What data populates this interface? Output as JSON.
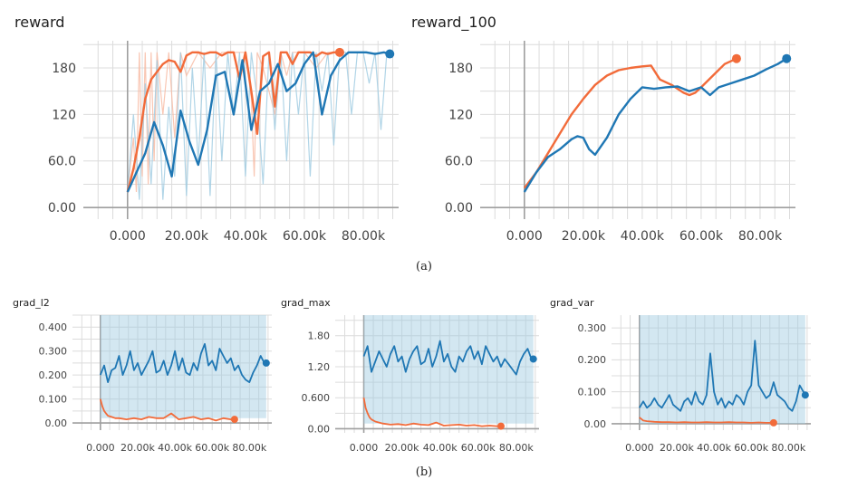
{
  "captions": {
    "top": "(a)",
    "bottom": "(b)"
  },
  "colors": {
    "blue": "#1f77b4",
    "orange": "#f26b3a",
    "blue_faint": "#9ecae1",
    "orange_faint": "#f8b9a1",
    "grid": "#dcdcdc",
    "axis": "#9e9e9e"
  },
  "chart_data": [
    {
      "type": "line",
      "title": "reward",
      "xlabel": "",
      "ylabel": "",
      "x_ticks": [
        0,
        20000,
        40000,
        60000,
        80000
      ],
      "x_tick_labels": [
        "0.000",
        "20.00k",
        "40.00k",
        "60.00k",
        "80.00k"
      ],
      "y_ticks": [
        0,
        60,
        120,
        180
      ],
      "y_tick_labels": [
        "0.00",
        "60.0",
        "120",
        "180"
      ],
      "xlim": [
        -15000,
        92000
      ],
      "ylim": [
        -15,
        215
      ],
      "grid": true,
      "series": [
        {
          "color": "orange",
          "x": [
            0,
            2000,
            4000,
            6000,
            8000,
            10000,
            12000,
            14000,
            16000,
            18000,
            20000,
            22000,
            24000,
            26000,
            28000,
            30000,
            32000,
            34000,
            36000,
            38000,
            40000,
            42000,
            44000,
            46000,
            48000,
            50000,
            52000,
            54000,
            56000,
            58000,
            60000,
            62000,
            64000,
            66000,
            68000,
            70000,
            72000
          ],
          "y": [
            20,
            50,
            90,
            140,
            165,
            175,
            185,
            190,
            188,
            175,
            196,
            200,
            200,
            198,
            200,
            200,
            196,
            200,
            200,
            165,
            200,
            150,
            95,
            195,
            200,
            130,
            200,
            200,
            185,
            200,
            200,
            200,
            195,
            200,
            198,
            200,
            200
          ]
        },
        {
          "color": "blue",
          "x": [
            0,
            3000,
            6000,
            9000,
            12000,
            15000,
            18000,
            21000,
            24000,
            27000,
            30000,
            33000,
            36000,
            39000,
            42000,
            45000,
            48000,
            51000,
            54000,
            57000,
            60000,
            63000,
            66000,
            69000,
            72000,
            75000,
            78000,
            81000,
            84000,
            87000,
            89000
          ],
          "y": [
            20,
            45,
            70,
            110,
            80,
            40,
            125,
            85,
            55,
            100,
            170,
            175,
            120,
            190,
            100,
            150,
            160,
            185,
            150,
            160,
            185,
            200,
            120,
            170,
            190,
            200,
            200,
            200,
            198,
            200,
            198
          ]
        }
      ],
      "faint_series": [
        {
          "color": "orange",
          "x": [
            0,
            2000,
            3000,
            4000,
            5000,
            6000,
            7000,
            8000,
            9000,
            10000,
            12000,
            14000,
            16000,
            18000,
            20000,
            24000,
            28000,
            32000,
            36000,
            40000,
            42000,
            43000,
            44000,
            46000,
            50000,
            52000,
            54000,
            56000,
            60000,
            64000,
            68000,
            72000
          ],
          "y": [
            20,
            90,
            20,
            200,
            40,
            200,
            30,
            200,
            60,
            200,
            120,
            200,
            90,
            200,
            170,
            200,
            180,
            200,
            200,
            200,
            140,
            40,
            200,
            180,
            120,
            200,
            170,
            200,
            200,
            180,
            200,
            200
          ]
        },
        {
          "color": "blue",
          "x": [
            0,
            2000,
            4000,
            6000,
            8000,
            10000,
            12000,
            14000,
            16000,
            18000,
            20000,
            22000,
            24000,
            26000,
            28000,
            30000,
            32000,
            34000,
            36000,
            38000,
            40000,
            42000,
            44000,
            46000,
            48000,
            50000,
            52000,
            54000,
            56000,
            58000,
            60000,
            62000,
            64000,
            66000,
            68000,
            70000,
            72000,
            74000,
            76000,
            78000,
            80000,
            82000,
            84000,
            86000,
            88000,
            89000
          ],
          "y": [
            20,
            120,
            10,
            160,
            30,
            190,
            10,
            130,
            40,
            200,
            15,
            180,
            60,
            200,
            15,
            200,
            60,
            200,
            120,
            200,
            40,
            200,
            140,
            30,
            200,
            100,
            200,
            60,
            200,
            120,
            200,
            40,
            200,
            150,
            200,
            80,
            200,
            200,
            120,
            200,
            200,
            160,
            200,
            100,
            200,
            198
          ]
        }
      ]
    },
    {
      "type": "line",
      "title": "reward_100",
      "xlabel": "",
      "ylabel": "",
      "x_ticks": [
        0,
        20000,
        40000,
        60000,
        80000
      ],
      "x_tick_labels": [
        "0.000",
        "20.00k",
        "40.00k",
        "60.00k",
        "80.00k"
      ],
      "y_ticks": [
        0,
        60,
        120,
        180
      ],
      "y_tick_labels": [
        "0.00",
        "60.0",
        "120",
        "180"
      ],
      "xlim": [
        -15000,
        92000
      ],
      "ylim": [
        -15,
        215
      ],
      "grid": true,
      "series": [
        {
          "color": "orange",
          "x": [
            0,
            4000,
            8000,
            12000,
            16000,
            20000,
            24000,
            28000,
            32000,
            36000,
            40000,
            43000,
            46000,
            50000,
            54000,
            56000,
            58000,
            60000,
            64000,
            68000,
            72000
          ],
          "y": [
            25,
            45,
            70,
            95,
            120,
            140,
            158,
            170,
            177,
            180,
            182,
            183,
            165,
            158,
            148,
            145,
            148,
            155,
            170,
            185,
            192
          ]
        },
        {
          "color": "blue",
          "x": [
            0,
            4000,
            8000,
            12000,
            16000,
            18000,
            20000,
            22000,
            24000,
            28000,
            32000,
            36000,
            40000,
            44000,
            48000,
            52000,
            56000,
            60000,
            63000,
            66000,
            70000,
            74000,
            78000,
            82000,
            86000,
            89000
          ],
          "y": [
            20,
            45,
            65,
            75,
            88,
            92,
            90,
            75,
            68,
            90,
            120,
            140,
            155,
            153,
            155,
            156,
            150,
            155,
            145,
            155,
            160,
            165,
            170,
            178,
            185,
            192
          ]
        }
      ]
    },
    {
      "type": "line",
      "title": "grad_l2",
      "xlabel": "",
      "ylabel": "",
      "x_ticks": [
        0,
        20000,
        40000,
        60000,
        80000
      ],
      "x_tick_labels": [
        "0.000",
        "20.00k",
        "40.00k",
        "60.00k",
        "80.00k"
      ],
      "y_ticks": [
        0,
        0.1,
        0.2,
        0.3,
        0.4
      ],
      "y_tick_labels": [
        "0.00",
        "0.100",
        "0.200",
        "0.300",
        "0.400"
      ],
      "xlim": [
        -15000,
        92000
      ],
      "ylim": [
        -0.03,
        0.45
      ],
      "grid": true,
      "band": {
        "color": "blue_faint",
        "x_from": 0,
        "x_to": 89000,
        "y_from": 0.02,
        "y_to": 0.45
      },
      "series": [
        {
          "color": "orange",
          "x": [
            0,
            1000,
            2000,
            3000,
            4000,
            6000,
            8000,
            10000,
            14000,
            18000,
            22000,
            26000,
            30000,
            34000,
            38000,
            42000,
            46000,
            50000,
            54000,
            58000,
            62000,
            66000,
            70000,
            72000
          ],
          "y": [
            0.1,
            0.07,
            0.05,
            0.04,
            0.03,
            0.025,
            0.02,
            0.02,
            0.015,
            0.02,
            0.015,
            0.025,
            0.02,
            0.02,
            0.04,
            0.015,
            0.02,
            0.025,
            0.015,
            0.02,
            0.01,
            0.02,
            0.015,
            0.015
          ]
        },
        {
          "color": "blue",
          "x": [
            0,
            2000,
            4000,
            6000,
            8000,
            10000,
            12000,
            14000,
            16000,
            18000,
            20000,
            22000,
            24000,
            26000,
            28000,
            30000,
            32000,
            34000,
            36000,
            38000,
            40000,
            42000,
            44000,
            46000,
            48000,
            50000,
            52000,
            54000,
            56000,
            58000,
            60000,
            62000,
            64000,
            66000,
            68000,
            70000,
            72000,
            74000,
            76000,
            78000,
            80000,
            82000,
            84000,
            86000,
            88000,
            89000
          ],
          "y": [
            0.2,
            0.24,
            0.17,
            0.22,
            0.23,
            0.28,
            0.2,
            0.24,
            0.3,
            0.22,
            0.25,
            0.2,
            0.23,
            0.26,
            0.3,
            0.21,
            0.22,
            0.26,
            0.2,
            0.24,
            0.3,
            0.22,
            0.27,
            0.21,
            0.2,
            0.25,
            0.22,
            0.29,
            0.33,
            0.24,
            0.26,
            0.22,
            0.31,
            0.28,
            0.25,
            0.27,
            0.22,
            0.24,
            0.2,
            0.18,
            0.17,
            0.21,
            0.24,
            0.28,
            0.25,
            0.25
          ]
        }
      ]
    },
    {
      "type": "line",
      "title": "grad_max",
      "xlabel": "",
      "ylabel": "",
      "x_ticks": [
        0,
        20000,
        40000,
        60000,
        80000
      ],
      "x_tick_labels": [
        "0.000",
        "20.00k",
        "40.00k",
        "60.00k",
        "80.00k"
      ],
      "y_ticks": [
        0,
        0.6,
        1.2,
        1.8
      ],
      "y_tick_labels": [
        "0.00",
        "0.600",
        "1.20",
        "1.80"
      ],
      "xlim": [
        -15000,
        92000
      ],
      "ylim": [
        -0.08,
        2.2
      ],
      "grid": true,
      "band": {
        "color": "blue_faint",
        "x_from": 0,
        "x_to": 89000,
        "y_from": 0.1,
        "y_to": 2.2
      },
      "series": [
        {
          "color": "orange",
          "x": [
            0,
            1000,
            2000,
            3000,
            4000,
            6000,
            8000,
            10000,
            14000,
            18000,
            22000,
            26000,
            30000,
            34000,
            38000,
            42000,
            46000,
            50000,
            54000,
            58000,
            62000,
            66000,
            70000,
            72000
          ],
          "y": [
            0.6,
            0.4,
            0.3,
            0.22,
            0.18,
            0.14,
            0.12,
            0.1,
            0.08,
            0.09,
            0.07,
            0.1,
            0.08,
            0.07,
            0.12,
            0.06,
            0.07,
            0.08,
            0.06,
            0.07,
            0.05,
            0.06,
            0.05,
            0.05
          ]
        },
        {
          "color": "blue",
          "x": [
            0,
            2000,
            4000,
            6000,
            8000,
            10000,
            12000,
            14000,
            16000,
            18000,
            20000,
            22000,
            24000,
            26000,
            28000,
            30000,
            32000,
            34000,
            36000,
            38000,
            40000,
            42000,
            44000,
            46000,
            48000,
            50000,
            52000,
            54000,
            56000,
            58000,
            60000,
            62000,
            64000,
            66000,
            68000,
            70000,
            72000,
            74000,
            76000,
            78000,
            80000,
            82000,
            84000,
            86000,
            88000,
            89000
          ],
          "y": [
            1.4,
            1.6,
            1.1,
            1.3,
            1.5,
            1.35,
            1.2,
            1.45,
            1.6,
            1.3,
            1.4,
            1.1,
            1.35,
            1.5,
            1.6,
            1.25,
            1.3,
            1.55,
            1.2,
            1.4,
            1.7,
            1.3,
            1.45,
            1.2,
            1.1,
            1.4,
            1.3,
            1.5,
            1.6,
            1.35,
            1.5,
            1.25,
            1.6,
            1.45,
            1.3,
            1.4,
            1.2,
            1.35,
            1.25,
            1.15,
            1.05,
            1.3,
            1.45,
            1.55,
            1.35,
            1.35
          ]
        }
      ]
    },
    {
      "type": "line",
      "title": "grad_var",
      "xlabel": "",
      "ylabel": "",
      "x_ticks": [
        0,
        20000,
        40000,
        60000,
        80000
      ],
      "x_tick_labels": [
        "0.000",
        "20.00k",
        "40.00k",
        "60.00k",
        "80.00k"
      ],
      "y_ticks": [
        0,
        0.1,
        0.2,
        0.3
      ],
      "y_tick_labels": [
        "0.00",
        "0.100",
        "0.200",
        "0.300"
      ],
      "xlim": [
        -15000,
        92000
      ],
      "ylim": [
        -0.02,
        0.34
      ],
      "grid": true,
      "band": {
        "color": "blue_faint",
        "x_from": 0,
        "x_to": 89000,
        "y_from": 0.0,
        "y_to": 0.34
      },
      "series": [
        {
          "color": "orange",
          "x": [
            0,
            2000,
            4000,
            8000,
            12000,
            16000,
            20000,
            24000,
            28000,
            32000,
            36000,
            40000,
            44000,
            48000,
            52000,
            56000,
            60000,
            64000,
            68000,
            72000
          ],
          "y": [
            0.02,
            0.01,
            0.008,
            0.006,
            0.005,
            0.005,
            0.004,
            0.005,
            0.004,
            0.004,
            0.005,
            0.004,
            0.004,
            0.005,
            0.004,
            0.004,
            0.003,
            0.004,
            0.003,
            0.003
          ]
        },
        {
          "color": "blue",
          "x": [
            0,
            2000,
            4000,
            6000,
            8000,
            10000,
            12000,
            14000,
            16000,
            18000,
            20000,
            22000,
            24000,
            26000,
            28000,
            30000,
            32000,
            34000,
            36000,
            38000,
            40000,
            42000,
            44000,
            46000,
            48000,
            50000,
            52000,
            54000,
            56000,
            58000,
            60000,
            62000,
            64000,
            66000,
            68000,
            70000,
            72000,
            74000,
            76000,
            78000,
            80000,
            82000,
            84000,
            86000,
            88000,
            89000
          ],
          "y": [
            0.05,
            0.07,
            0.05,
            0.06,
            0.08,
            0.06,
            0.05,
            0.07,
            0.09,
            0.06,
            0.05,
            0.04,
            0.07,
            0.08,
            0.06,
            0.1,
            0.07,
            0.06,
            0.09,
            0.22,
            0.1,
            0.06,
            0.08,
            0.05,
            0.07,
            0.06,
            0.09,
            0.08,
            0.06,
            0.1,
            0.12,
            0.26,
            0.12,
            0.1,
            0.08,
            0.09,
            0.13,
            0.09,
            0.08,
            0.07,
            0.05,
            0.04,
            0.07,
            0.12,
            0.1,
            0.09
          ]
        }
      ]
    }
  ]
}
